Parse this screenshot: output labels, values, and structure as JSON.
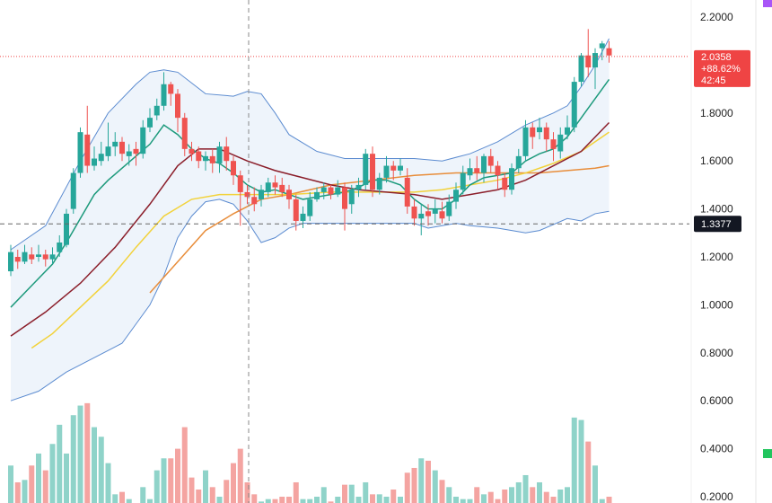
{
  "chart_data": {
    "type": "candlestick",
    "y_axis": {
      "ticks": [
        "2.2000",
        "1.8000",
        "1.6000",
        "1.4000",
        "1.2000",
        "1.0000",
        "0.8000",
        "0.6000",
        "0.4000",
        "0.2000"
      ],
      "ylim": [
        0.18,
        2.24
      ]
    },
    "price_tag": {
      "price": "2.0358",
      "change": "+88.62%",
      "countdown": "42:45",
      "value": 2.0358
    },
    "crosshair": {
      "label": "1.3377",
      "value": 1.3377
    },
    "candles": [
      [
        1.14,
        1.22,
        1.25,
        1.12
      ],
      [
        1.2,
        1.18,
        1.23,
        1.15
      ],
      [
        1.18,
        1.22,
        1.25,
        1.17
      ],
      [
        1.21,
        1.19,
        1.24,
        1.17
      ],
      [
        1.2,
        1.21,
        1.25,
        1.18
      ],
      [
        1.21,
        1.19,
        1.23,
        1.16
      ],
      [
        1.19,
        1.21,
        1.24,
        1.17
      ],
      [
        1.22,
        1.26,
        1.29,
        1.2
      ],
      [
        1.25,
        1.38,
        1.4,
        1.24
      ],
      [
        1.4,
        1.55,
        1.57,
        1.38
      ],
      [
        1.55,
        1.72,
        1.74,
        1.53
      ],
      [
        1.71,
        1.58,
        1.83,
        1.55
      ],
      [
        1.58,
        1.61,
        1.66,
        1.56
      ],
      [
        1.6,
        1.63,
        1.68,
        1.58
      ],
      [
        1.62,
        1.66,
        1.76,
        1.6
      ],
      [
        1.66,
        1.68,
        1.72,
        1.62
      ],
      [
        1.68,
        1.63,
        1.7,
        1.6
      ],
      [
        1.62,
        1.64,
        1.67,
        1.58
      ],
      [
        1.65,
        1.63,
        1.68,
        1.58
      ],
      [
        1.63,
        1.74,
        1.77,
        1.61
      ],
      [
        1.74,
        1.78,
        1.82,
        1.72
      ],
      [
        1.79,
        1.83,
        1.86,
        1.77
      ],
      [
        1.83,
        1.92,
        1.97,
        1.81
      ],
      [
        1.92,
        1.88,
        1.93,
        1.83
      ],
      [
        1.88,
        1.78,
        1.9,
        1.72
      ],
      [
        1.78,
        1.65,
        1.8,
        1.62
      ],
      [
        1.65,
        1.63,
        1.68,
        1.6
      ],
      [
        1.64,
        1.6,
        1.66,
        1.57
      ],
      [
        1.6,
        1.62,
        1.64,
        1.56
      ],
      [
        1.62,
        1.59,
        1.65,
        1.55
      ],
      [
        1.59,
        1.66,
        1.68,
        1.55
      ],
      [
        1.66,
        1.6,
        1.7,
        1.56
      ],
      [
        1.6,
        1.54,
        1.62,
        1.5
      ],
      [
        1.54,
        1.47,
        1.56,
        1.33
      ],
      [
        1.47,
        1.45,
        1.5,
        1.42
      ],
      [
        1.45,
        1.42,
        1.49,
        1.39
      ],
      [
        1.44,
        1.48,
        1.5,
        1.41
      ],
      [
        1.47,
        1.51,
        1.53,
        1.45
      ],
      [
        1.51,
        1.49,
        1.54,
        1.46
      ],
      [
        1.5,
        1.47,
        1.53,
        1.45
      ],
      [
        1.48,
        1.44,
        1.5,
        1.4
      ],
      [
        1.44,
        1.35,
        1.46,
        1.31
      ],
      [
        1.35,
        1.38,
        1.41,
        1.32
      ],
      [
        1.37,
        1.44,
        1.47,
        1.35
      ],
      [
        1.44,
        1.47,
        1.49,
        1.43
      ],
      [
        1.47,
        1.49,
        1.51,
        1.44
      ],
      [
        1.49,
        1.46,
        1.5,
        1.44
      ],
      [
        1.46,
        1.49,
        1.52,
        1.45
      ],
      [
        1.49,
        1.4,
        1.51,
        1.31
      ],
      [
        1.42,
        1.48,
        1.5,
        1.38
      ],
      [
        1.48,
        1.5,
        1.53,
        1.45
      ],
      [
        1.5,
        1.63,
        1.65,
        1.48
      ],
      [
        1.63,
        1.48,
        1.66,
        1.45
      ],
      [
        1.48,
        1.53,
        1.55,
        1.46
      ],
      [
        1.53,
        1.58,
        1.62,
        1.51
      ],
      [
        1.58,
        1.56,
        1.6,
        1.52
      ],
      [
        1.56,
        1.58,
        1.61,
        1.54
      ],
      [
        1.53,
        1.41,
        1.57,
        1.38
      ],
      [
        1.41,
        1.36,
        1.44,
        1.33
      ],
      [
        1.36,
        1.38,
        1.42,
        1.29
      ],
      [
        1.39,
        1.37,
        1.42,
        1.33
      ],
      [
        1.38,
        1.4,
        1.44,
        1.34
      ],
      [
        1.39,
        1.36,
        1.43,
        1.34
      ],
      [
        1.37,
        1.43,
        1.46,
        1.35
      ],
      [
        1.43,
        1.48,
        1.51,
        1.4
      ],
      [
        1.48,
        1.55,
        1.58,
        1.46
      ],
      [
        1.54,
        1.57,
        1.61,
        1.52
      ],
      [
        1.57,
        1.55,
        1.62,
        1.52
      ],
      [
        1.55,
        1.62,
        1.63,
        1.51
      ],
      [
        1.62,
        1.58,
        1.65,
        1.55
      ],
      [
        1.58,
        1.54,
        1.6,
        1.48
      ],
      [
        1.53,
        1.48,
        1.55,
        1.45
      ],
      [
        1.48,
        1.57,
        1.59,
        1.46
      ],
      [
        1.57,
        1.62,
        1.65,
        1.55
      ],
      [
        1.62,
        1.74,
        1.77,
        1.6
      ],
      [
        1.74,
        1.7,
        1.76,
        1.65
      ],
      [
        1.72,
        1.74,
        1.78,
        1.69
      ],
      [
        1.74,
        1.69,
        1.76,
        1.64
      ],
      [
        1.69,
        1.65,
        1.72,
        1.6
      ],
      [
        1.64,
        1.71,
        1.74,
        1.61
      ],
      [
        1.71,
        1.74,
        1.79,
        1.69
      ],
      [
        1.74,
        1.93,
        1.95,
        1.72
      ],
      [
        1.93,
        2.04,
        2.05,
        1.91
      ],
      [
        2.04,
        1.99,
        2.15,
        1.95
      ],
      [
        1.99,
        2.05,
        2.07,
        1.9
      ],
      [
        2.07,
        2.09,
        2.1,
        2.02
      ],
      [
        2.07,
        2.04,
        2.1,
        2.01
      ]
    ],
    "volume": [
      0.33,
      0.26,
      0.27,
      0.33,
      0.38,
      0.31,
      0.42,
      0.5,
      0.38,
      0.54,
      0.58,
      0.59,
      0.49,
      0.45,
      0.34,
      0.21,
      0.22,
      0.19,
      0.17,
      0.24,
      0.19,
      0.31,
      0.36,
      0.36,
      0.4,
      0.49,
      0.28,
      0.23,
      0.31,
      0.24,
      0.2,
      0.27,
      0.34,
      0.4,
      0.26,
      0.21,
      0.18,
      0.19,
      0.19,
      0.2,
      0.2,
      0.26,
      0.19,
      0.19,
      0.2,
      0.24,
      0.18,
      0.2,
      0.25,
      0.25,
      0.2,
      0.26,
      0.21,
      0.21,
      0.2,
      0.23,
      0.2,
      0.3,
      0.32,
      0.36,
      0.35,
      0.31,
      0.27,
      0.24,
      0.2,
      0.19,
      0.19,
      0.24,
      0.21,
      0.22,
      0.19,
      0.23,
      0.24,
      0.26,
      0.29,
      0.24,
      0.26,
      0.22,
      0.2,
      0.23,
      0.24,
      0.53,
      0.52,
      0.43,
      0.33,
      0.19,
      0.2
    ],
    "indicators": {
      "bollinger_upper": [
        [
          0,
          1.23
        ],
        [
          5,
          1.33
        ],
        [
          10,
          1.6
        ],
        [
          14,
          1.8
        ],
        [
          18,
          1.92
        ],
        [
          20,
          1.97
        ],
        [
          22,
          1.98
        ],
        [
          24,
          1.97
        ],
        [
          28,
          1.88
        ],
        [
          32,
          1.87
        ],
        [
          34,
          1.89
        ],
        [
          36,
          1.88
        ],
        [
          38,
          1.8
        ],
        [
          40,
          1.71
        ],
        [
          44,
          1.64
        ],
        [
          48,
          1.61
        ],
        [
          52,
          1.61
        ],
        [
          58,
          1.61
        ],
        [
          62,
          1.6
        ],
        [
          66,
          1.63
        ],
        [
          70,
          1.68
        ],
        [
          74,
          1.75
        ],
        [
          78,
          1.8
        ],
        [
          80,
          1.83
        ],
        [
          82,
          1.91
        ],
        [
          84,
          2.0
        ],
        [
          86,
          2.11
        ]
      ],
      "bollinger_lower": [
        [
          0,
          0.6
        ],
        [
          4,
          0.64
        ],
        [
          8,
          0.72
        ],
        [
          12,
          0.78
        ],
        [
          16,
          0.84
        ],
        [
          18,
          0.92
        ],
        [
          20,
          1.0
        ],
        [
          22,
          1.12
        ],
        [
          24,
          1.28
        ],
        [
          26,
          1.37
        ],
        [
          28,
          1.43
        ],
        [
          30,
          1.44
        ],
        [
          32,
          1.42
        ],
        [
          34,
          1.35
        ],
        [
          36,
          1.26
        ],
        [
          38,
          1.28
        ],
        [
          40,
          1.32
        ],
        [
          42,
          1.34
        ],
        [
          46,
          1.34
        ],
        [
          50,
          1.34
        ],
        [
          54,
          1.34
        ],
        [
          58,
          1.34
        ],
        [
          60,
          1.32
        ],
        [
          62,
          1.33
        ],
        [
          64,
          1.34
        ],
        [
          66,
          1.33
        ],
        [
          70,
          1.32
        ],
        [
          74,
          1.3
        ],
        [
          76,
          1.31
        ],
        [
          80,
          1.36
        ],
        [
          82,
          1.35
        ],
        [
          84,
          1.38
        ],
        [
          86,
          1.39
        ]
      ],
      "ma_green": [
        [
          0,
          0.99
        ],
        [
          3,
          1.08
        ],
        [
          6,
          1.17
        ],
        [
          8,
          1.26
        ],
        [
          10,
          1.36
        ],
        [
          12,
          1.46
        ],
        [
          14,
          1.52
        ],
        [
          16,
          1.57
        ],
        [
          18,
          1.62
        ],
        [
          20,
          1.67
        ],
        [
          22,
          1.75
        ],
        [
          24,
          1.71
        ],
        [
          26,
          1.65
        ],
        [
          28,
          1.61
        ],
        [
          30,
          1.59
        ],
        [
          32,
          1.55
        ],
        [
          34,
          1.5
        ],
        [
          36,
          1.47
        ],
        [
          38,
          1.48
        ],
        [
          40,
          1.46
        ],
        [
          42,
          1.44
        ],
        [
          44,
          1.45
        ],
        [
          46,
          1.46
        ],
        [
          48,
          1.47
        ],
        [
          50,
          1.49
        ],
        [
          52,
          1.52
        ],
        [
          54,
          1.52
        ],
        [
          56,
          1.5
        ],
        [
          58,
          1.44
        ],
        [
          60,
          1.4
        ],
        [
          62,
          1.4
        ],
        [
          64,
          1.44
        ],
        [
          66,
          1.5
        ],
        [
          68,
          1.53
        ],
        [
          70,
          1.54
        ],
        [
          72,
          1.55
        ],
        [
          74,
          1.6
        ],
        [
          76,
          1.63
        ],
        [
          78,
          1.65
        ],
        [
          80,
          1.7
        ],
        [
          82,
          1.78
        ],
        [
          84,
          1.86
        ],
        [
          86,
          1.94
        ]
      ],
      "ma_dark_red": [
        [
          0,
          0.87
        ],
        [
          5,
          0.97
        ],
        [
          10,
          1.09
        ],
        [
          15,
          1.24
        ],
        [
          20,
          1.42
        ],
        [
          24,
          1.58
        ],
        [
          27,
          1.65
        ],
        [
          30,
          1.65
        ],
        [
          34,
          1.6
        ],
        [
          38,
          1.56
        ],
        [
          42,
          1.53
        ],
        [
          46,
          1.5
        ],
        [
          50,
          1.48
        ],
        [
          54,
          1.47
        ],
        [
          58,
          1.46
        ],
        [
          62,
          1.44
        ],
        [
          66,
          1.46
        ],
        [
          70,
          1.48
        ],
        [
          74,
          1.52
        ],
        [
          78,
          1.58
        ],
        [
          82,
          1.64
        ],
        [
          86,
          1.76
        ]
      ],
      "ma_yellow": [
        [
          3,
          0.82
        ],
        [
          6,
          0.88
        ],
        [
          10,
          0.99
        ],
        [
          14,
          1.1
        ],
        [
          18,
          1.24
        ],
        [
          22,
          1.37
        ],
        [
          26,
          1.44
        ],
        [
          30,
          1.46
        ],
        [
          34,
          1.46
        ],
        [
          40,
          1.46
        ],
        [
          46,
          1.47
        ],
        [
          50,
          1.47
        ],
        [
          54,
          1.47
        ],
        [
          58,
          1.47
        ],
        [
          62,
          1.48
        ],
        [
          66,
          1.5
        ],
        [
          70,
          1.52
        ],
        [
          74,
          1.55
        ],
        [
          78,
          1.59
        ],
        [
          82,
          1.64
        ],
        [
          86,
          1.72
        ]
      ],
      "ma_orange": [
        [
          20,
          1.05
        ],
        [
          24,
          1.18
        ],
        [
          28,
          1.31
        ],
        [
          32,
          1.38
        ],
        [
          36,
          1.44
        ],
        [
          40,
          1.46
        ],
        [
          46,
          1.5
        ],
        [
          52,
          1.52
        ],
        [
          58,
          1.54
        ],
        [
          64,
          1.55
        ],
        [
          70,
          1.55
        ],
        [
          76,
          1.55
        ],
        [
          80,
          1.56
        ],
        [
          84,
          1.57
        ],
        [
          86,
          1.58
        ]
      ]
    },
    "colors": {
      "up": "#26a69a",
      "down": "#ef5350",
      "up_volume": "#8fd3c9",
      "down_volume": "#f4a4a1",
      "band_fill": "#eef4fb",
      "band_line": "#5b8bd0",
      "ma_green": "#1d9a7c",
      "ma_dark_red": "#8b1e2a",
      "ma_yellow": "#f2d23a",
      "ma_orange": "#e88d3a",
      "price_tag_bg": "#ef4444",
      "crosshair_tag_bg": "#131722"
    }
  }
}
